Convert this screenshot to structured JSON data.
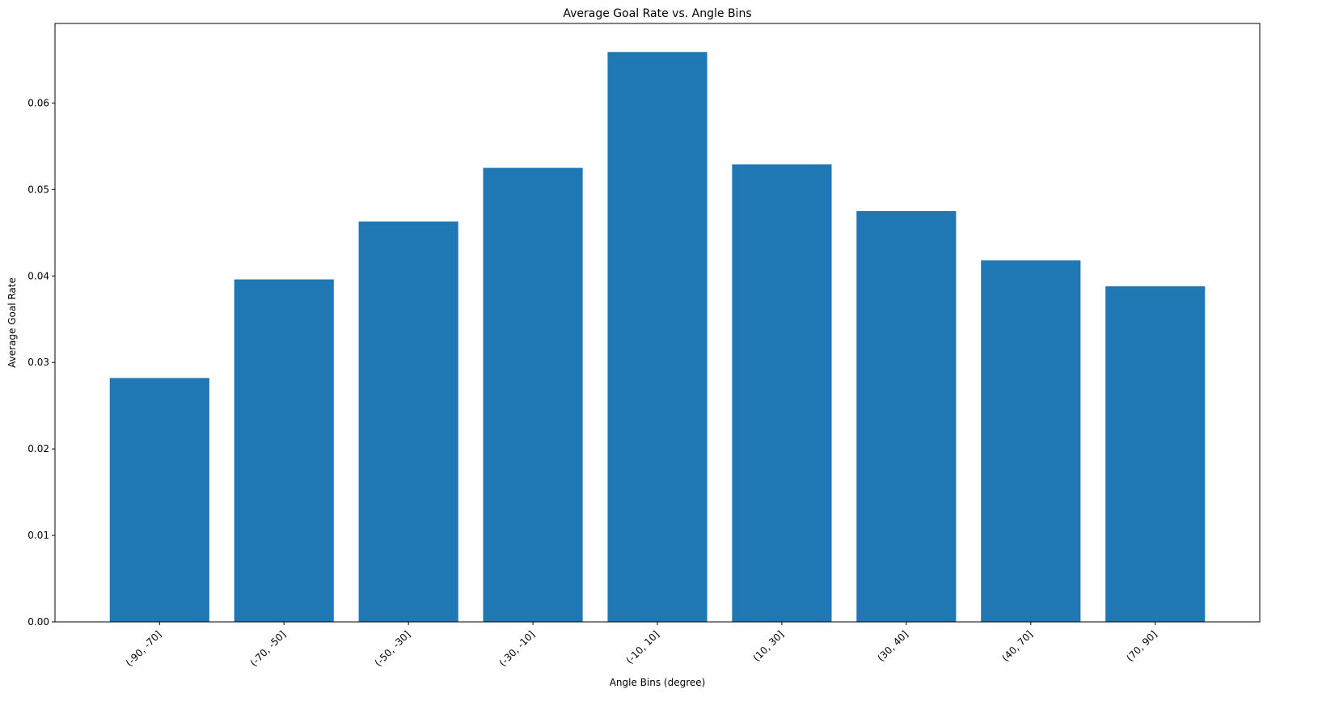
{
  "chart_data": {
    "type": "bar",
    "title": "Average Goal Rate vs. Angle Bins",
    "xlabel": "Angle Bins (degree)",
    "ylabel": "Average Goal Rate",
    "categories": [
      "(-90, -70]",
      "(-70, -50]",
      "(-50, -30]",
      "(-30, -10]",
      "(-10, 10]",
      "(10, 30]",
      "(30, 40]",
      "(40, 70]",
      "(70, 90]"
    ],
    "values": [
      0.0282,
      0.0396,
      0.0463,
      0.0525,
      0.0659,
      0.0529,
      0.0475,
      0.0418,
      0.0388
    ],
    "ylim": [
      0,
      0.0692
    ],
    "yticks": [
      0,
      0.01,
      0.02,
      0.03,
      0.04,
      0.05,
      0.06
    ],
    "ytick_labels": [
      "0.00",
      "0.01",
      "0.02",
      "0.03",
      "0.04",
      "0.05",
      "0.06"
    ],
    "grid": false,
    "bar_color": "#1f77b4"
  }
}
